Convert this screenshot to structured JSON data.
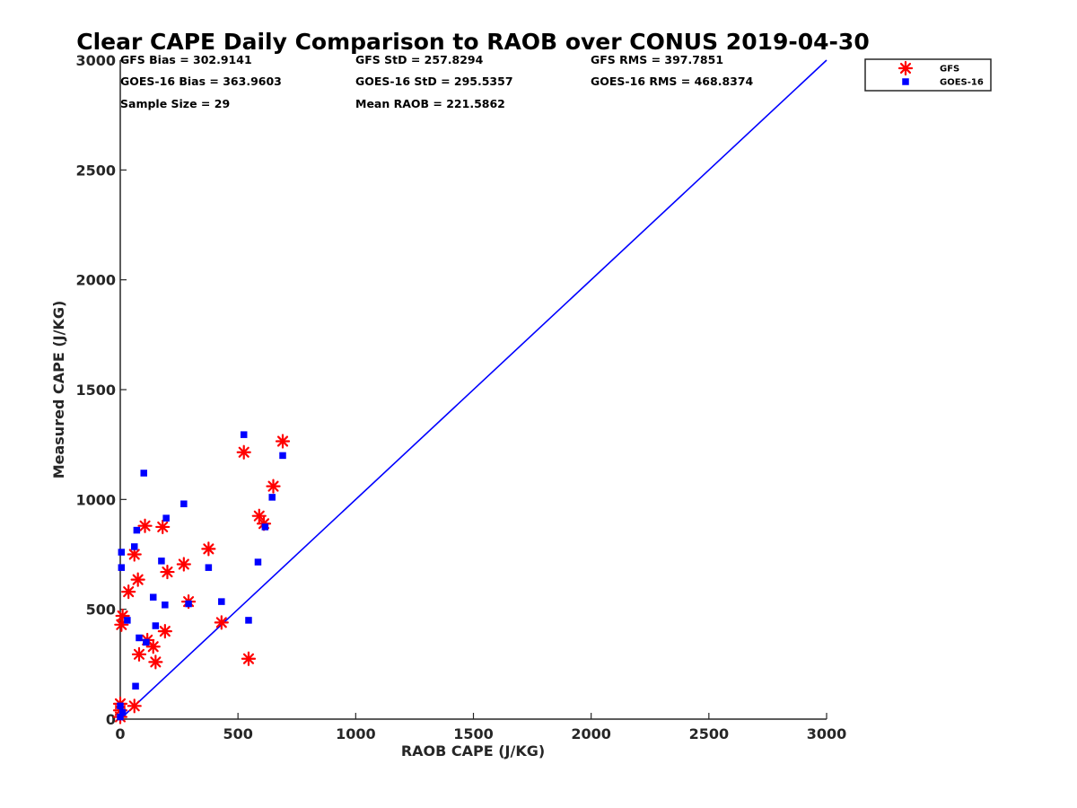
{
  "chart_data": {
    "type": "scatter",
    "title": "Clear CAPE Daily Comparison to RAOB over CONUS 2019-04-30",
    "xlabel": "RAOB CAPE (J/KG)",
    "ylabel": "Measured CAPE (J/KG)",
    "xlim": [
      0,
      3000
    ],
    "ylim": [
      0,
      3000
    ],
    "xticks": [
      "0",
      "500",
      "1000",
      "1500",
      "2000",
      "2500",
      "3000"
    ],
    "yticks": [
      "0",
      "500",
      "1000",
      "1500",
      "2000",
      "2500",
      "3000"
    ],
    "grid": false,
    "legend_position": "outside-top-right",
    "stats": [
      [
        "GFS Bias = 302.9141",
        "GFS StD = 257.8294",
        "GFS RMS = 397.7851"
      ],
      [
        "GOES-16 Bias = 363.9603",
        "GOES-16 StD = 295.5357",
        "GOES-16 RMS = 468.8374"
      ],
      [
        "Sample Size = 29",
        "Mean RAOB = 221.5862",
        ""
      ]
    ],
    "reference_line": {
      "x": [
        0,
        3000
      ],
      "y": [
        0,
        3000
      ],
      "color": "#0000ff"
    },
    "series": [
      {
        "name": "GFS",
        "marker": "asterisk",
        "color": "#ff0000",
        "x": [
          0,
          0,
          0,
          5,
          10,
          35,
          60,
          60,
          75,
          80,
          105,
          115,
          140,
          150,
          180,
          190,
          200,
          270,
          290,
          375,
          430,
          525,
          545,
          590,
          610,
          650,
          690
        ],
        "y": [
          10,
          40,
          70,
          430,
          470,
          580,
          750,
          60,
          635,
          295,
          880,
          360,
          330,
          260,
          875,
          400,
          670,
          705,
          535,
          775,
          440,
          1215,
          275,
          925,
          890,
          1060,
          1265
        ]
      },
      {
        "name": "GOES-16",
        "marker": "square",
        "color": "#0000ff",
        "x": [
          0,
          0,
          5,
          5,
          10,
          30,
          60,
          65,
          70,
          80,
          100,
          110,
          140,
          150,
          175,
          190,
          195,
          270,
          290,
          375,
          430,
          525,
          545,
          585,
          615,
          645,
          690
        ],
        "y": [
          10,
          60,
          690,
          760,
          30,
          450,
          785,
          150,
          860,
          370,
          1120,
          350,
          555,
          425,
          720,
          520,
          915,
          980,
          525,
          690,
          535,
          1295,
          450,
          715,
          875,
          1010,
          1200
        ]
      }
    ]
  }
}
